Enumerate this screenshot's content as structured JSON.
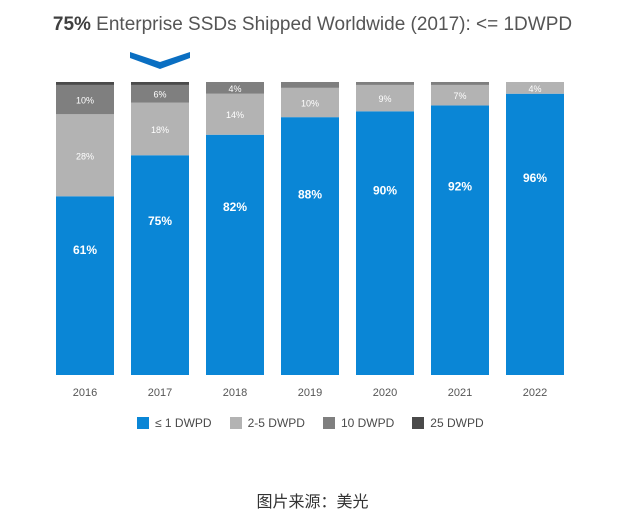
{
  "title": {
    "highlight": "75%",
    "rest": " Enterprise SSDs Shipped Worldwide (2017): <= 1DWPD"
  },
  "caption": "图片来源：美光",
  "chart_data": {
    "type": "bar",
    "stacked": true,
    "categories": [
      "2016",
      "2017",
      "2018",
      "2019",
      "2020",
      "2021",
      "2022"
    ],
    "series": [
      {
        "name": "≤ 1 DWPD",
        "color": "#0a86d6",
        "values": [
          61,
          75,
          82,
          88,
          90,
          92,
          96
        ],
        "labels": [
          "61%",
          "75%",
          "82%",
          "88%",
          "90%",
          "92%",
          "96%"
        ]
      },
      {
        "name": "2-5 DWPD",
        "color": "#b3b3b3",
        "values": [
          28,
          18,
          14,
          10,
          9,
          7,
          4
        ],
        "labels": [
          "28%",
          "18%",
          "14%",
          "10%",
          "9%",
          "7%",
          "4%"
        ]
      },
      {
        "name": "10 DWPD",
        "color": "#7f7f7f",
        "values": [
          10,
          6,
          4,
          2,
          1,
          1,
          0
        ],
        "labels": [
          "10%",
          "6%",
          "4%",
          "",
          "",
          "",
          ""
        ]
      },
      {
        "name": "25 DWPD",
        "color": "#4a4a4a",
        "values": [
          1,
          1,
          0,
          0,
          0,
          0,
          0
        ],
        "labels": [
          "",
          "",
          "",
          "",
          "",
          "",
          ""
        ]
      }
    ],
    "ylim": [
      0,
      100
    ],
    "highlight_category": "2017",
    "legend_position": "bottom",
    "grid": false
  }
}
